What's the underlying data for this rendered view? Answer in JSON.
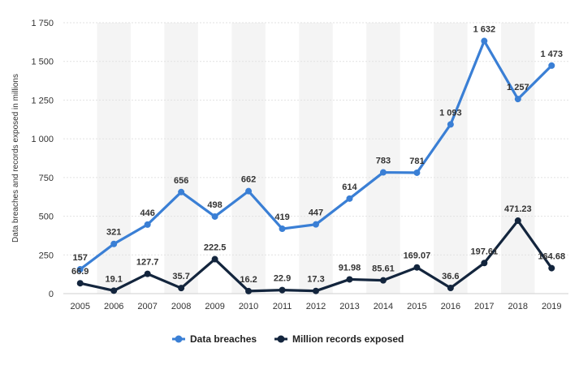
{
  "chart_data": {
    "type": "line",
    "title": "",
    "xlabel": "",
    "ylabel": "Data breaches and records exposed in millions",
    "ylim": [
      0,
      1750
    ],
    "yticks": [
      0,
      250,
      500,
      750,
      1000,
      1250,
      1500,
      1750
    ],
    "ytick_labels": [
      "0",
      "250",
      "500",
      "750",
      "1 000",
      "1 250",
      "1 500",
      "1 750"
    ],
    "categories": [
      "2005",
      "2006",
      "2007",
      "2008",
      "2009",
      "2010",
      "2011",
      "2012",
      "2013",
      "2014",
      "2015",
      "2016",
      "2017",
      "2018",
      "2019"
    ],
    "legend_position": "bottom-center",
    "series": [
      {
        "name": "Data breaches",
        "color": "#3a7fd5",
        "values": [
          157,
          321,
          446,
          656,
          498,
          662,
          419,
          447,
          614,
          783,
          781,
          1093,
          1632,
          1257,
          1473
        ],
        "labels": [
          "157",
          "321",
          "446",
          "656",
          "498",
          "662",
          "419",
          "447",
          "614",
          "783",
          "781",
          "1 093",
          "1 632",
          "1 257",
          "1 473"
        ]
      },
      {
        "name": "Million records exposed",
        "color": "#13253d",
        "values": [
          66.9,
          19.1,
          127.7,
          35.7,
          222.5,
          16.2,
          22.9,
          17.3,
          91.98,
          85.61,
          169.07,
          36.6,
          197.61,
          471.23,
          164.68
        ],
        "labels": [
          "66.9",
          "19.1",
          "127.7",
          "35.7",
          "222.5",
          "16.2",
          "22.9",
          "17.3",
          "91.98",
          "85.61",
          "169.07",
          "36.6",
          "197.61",
          "471.23",
          "164.68"
        ]
      }
    ]
  }
}
